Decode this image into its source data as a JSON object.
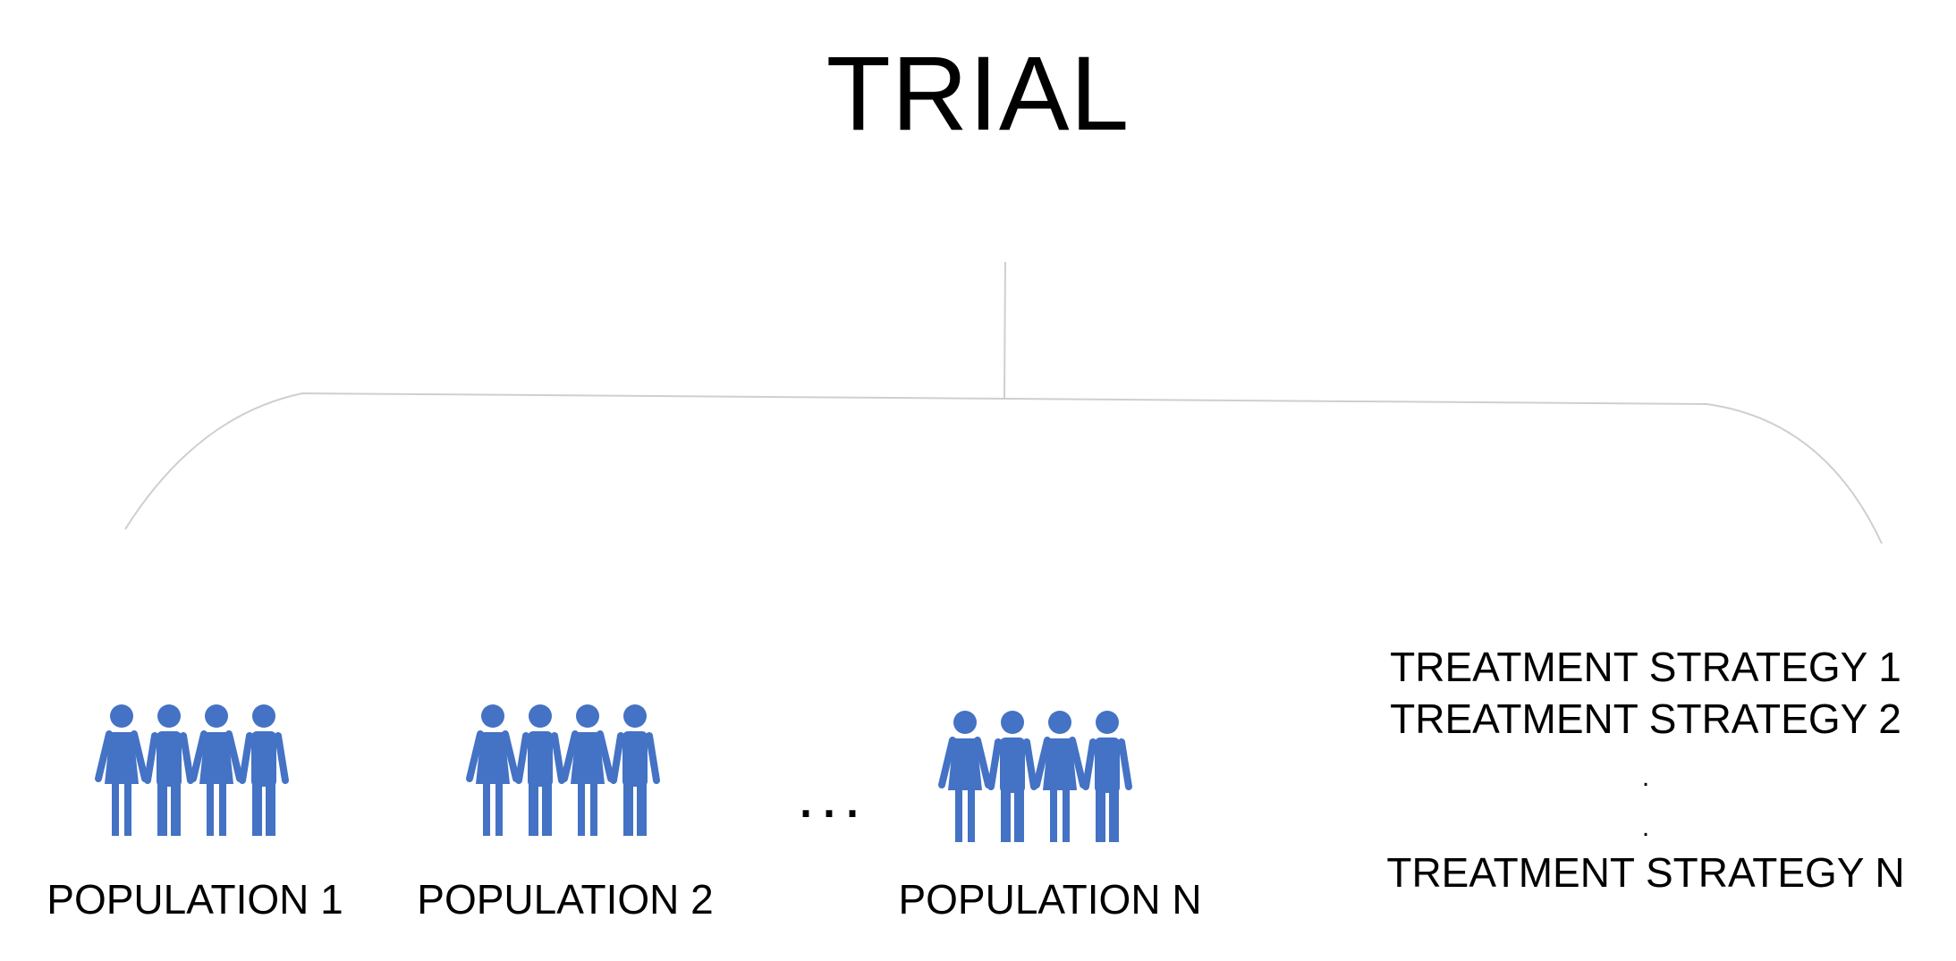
{
  "title": "TRIAL",
  "colors": {
    "people": "#4472C4",
    "connector": "#cfcfcf",
    "text": "#000000"
  },
  "icon": "people-group-icon",
  "populations": [
    {
      "label": "POPULATION 1"
    },
    {
      "label": "POPULATION 2"
    },
    {
      "label": "POPULATION N"
    }
  ],
  "ellipsis": "...",
  "strategies": [
    "TREATMENT STRATEGY 1",
    "TREATMENT STRATEGY 2",
    ".",
    ".",
    "TREATMENT STRATEGY N"
  ]
}
